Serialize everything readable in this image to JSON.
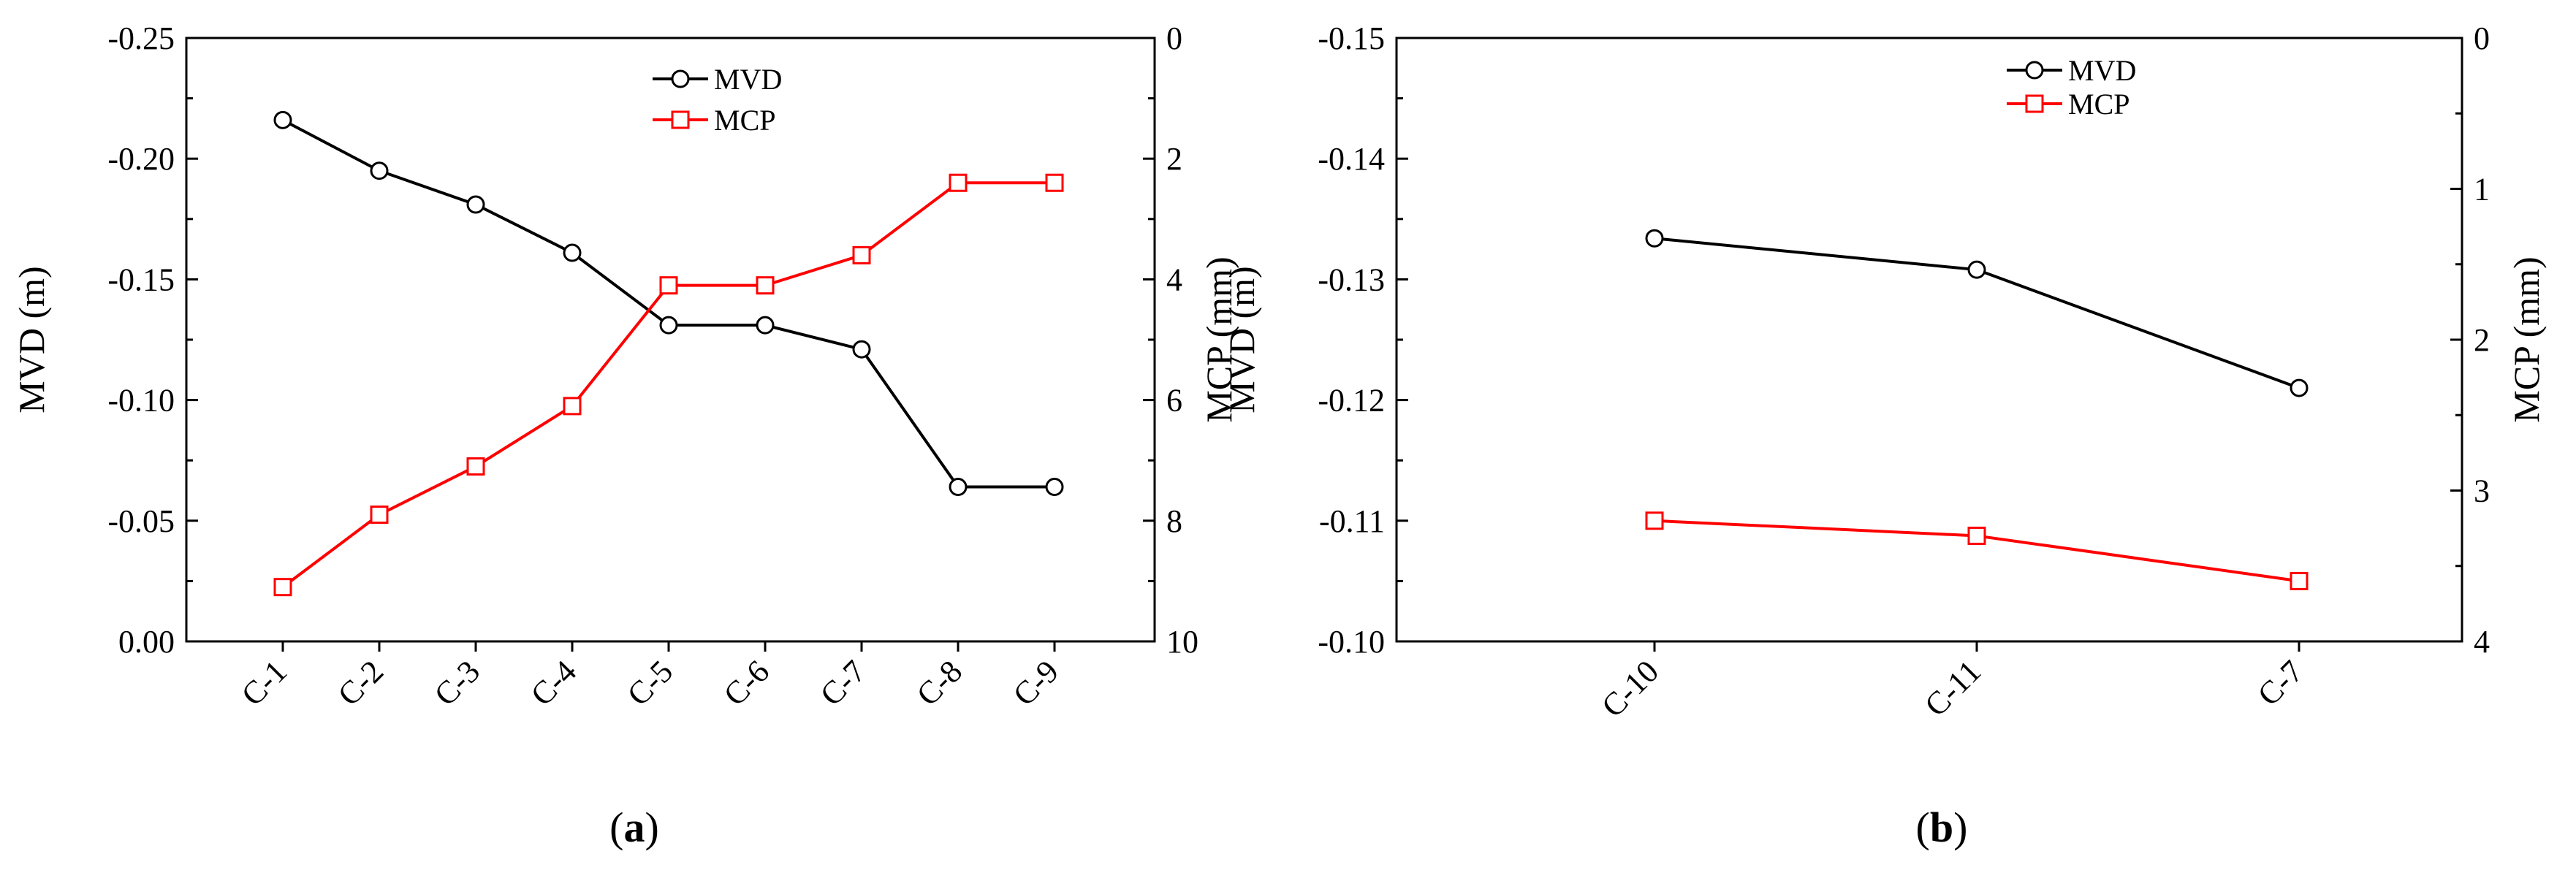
{
  "panels": [
    {
      "label_open": "(",
      "label_letter": "a",
      "label_close": ")"
    },
    {
      "label_open": "(",
      "label_letter": "b",
      "label_close": ")"
    }
  ],
  "chart_data": [
    {
      "type": "line",
      "categories": [
        "C-1",
        "C-2",
        "C-3",
        "C-4",
        "C-5",
        "C-6",
        "C-7",
        "C-8",
        "C-9"
      ],
      "series": [
        {
          "name": "MVD",
          "axis": "left",
          "color": "#000000",
          "marker": "circle",
          "values": [
            -0.216,
            -0.195,
            -0.181,
            -0.161,
            -0.131,
            -0.131,
            -0.121,
            -0.064,
            -0.064
          ]
        },
        {
          "name": "MCP",
          "axis": "right",
          "color": "#ff0000",
          "marker": "square",
          "values": [
            9.1,
            7.9,
            7.1,
            6.1,
            4.1,
            4.1,
            3.6,
            2.4,
            2.4
          ]
        }
      ],
      "ylabel": "MVD (m)",
      "y2label": "MCP (mm)",
      "ylim": [
        0.0,
        -0.25
      ],
      "yticks": [
        "0.00",
        "-0.05",
        "-0.10",
        "-0.15",
        "-0.20",
        "-0.25"
      ],
      "y2lim": [
        10,
        0
      ],
      "y2ticks": [
        "10",
        "8",
        "6",
        "4",
        "2",
        "0"
      ],
      "legend": "top-center",
      "grid": false
    },
    {
      "type": "line",
      "categories": [
        "C-10",
        "C-11",
        "C-7"
      ],
      "series": [
        {
          "name": "MVD",
          "axis": "left",
          "color": "#000000",
          "marker": "circle",
          "values": [
            -0.1334,
            -0.1308,
            -0.121
          ]
        },
        {
          "name": "MCP",
          "axis": "right",
          "color": "#ff0000",
          "marker": "square",
          "values": [
            3.2,
            3.3,
            3.6
          ]
        }
      ],
      "ylabel": "MVD (m)",
      "y2label": "MCP (mm)",
      "ylim": [
        -0.1,
        -0.15
      ],
      "yticks": [
        "-0.10",
        "-0.11",
        "-0.12",
        "-0.13",
        "-0.14",
        "-0.15"
      ],
      "y2lim": [
        4,
        0
      ],
      "y2ticks": [
        "4",
        "3",
        "2",
        "1",
        "0"
      ],
      "legend": "top-center",
      "grid": false
    }
  ]
}
